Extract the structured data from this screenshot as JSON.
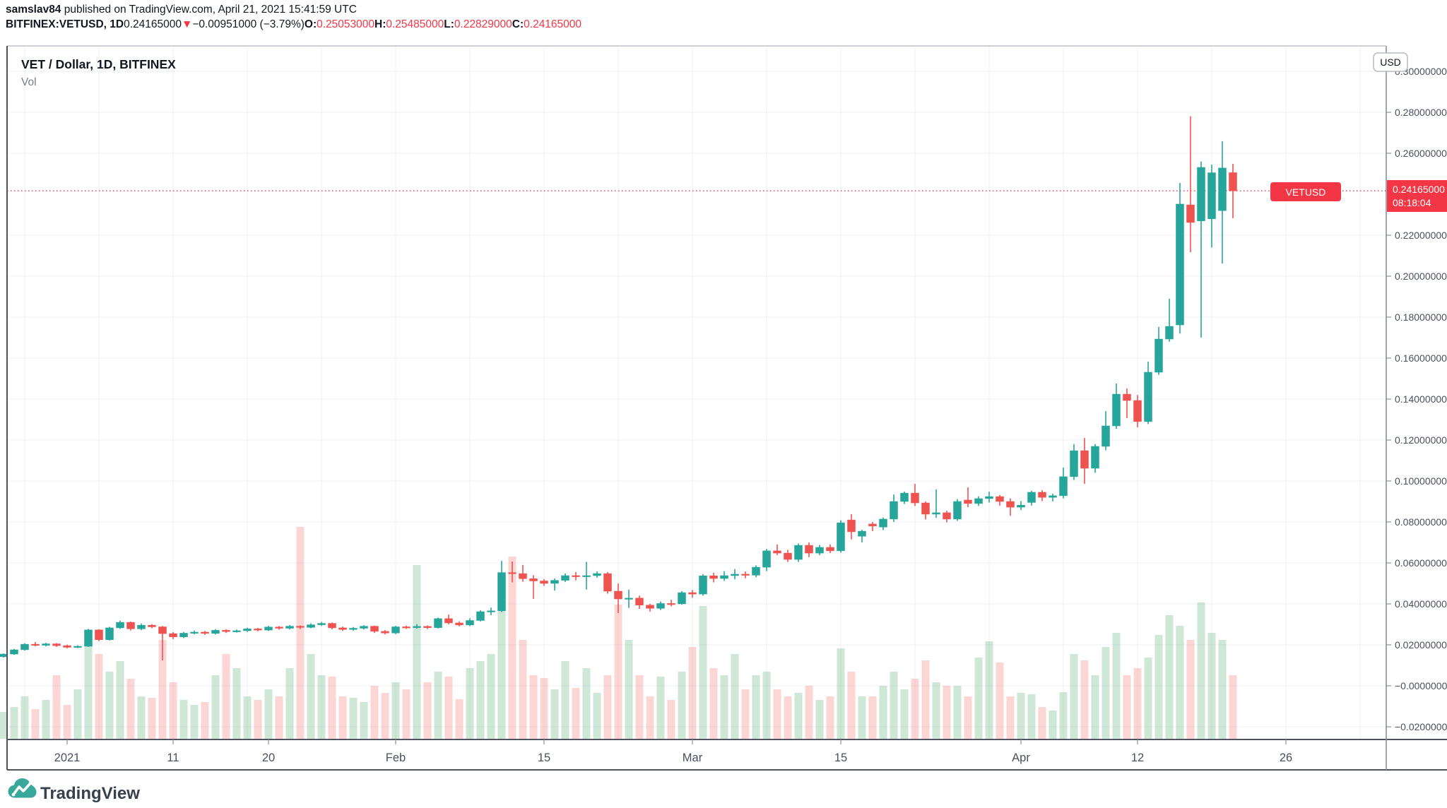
{
  "header": {
    "author": "samslav84",
    "published_text": " published on TradingView.com, April 21, 2021 15:41:59 UTC",
    "symbol_bold": "BITFINEX:VETUSD, 1D",
    "last_price": "0.24165000",
    "direction_icon": "▼",
    "change_text": "−0.00951000 (−3.79%)",
    "o_label": "O:",
    "o_value": "0.25053000",
    "h_label": "H:",
    "h_value": "0.25485000",
    "l_label": "L:",
    "l_value": "0.22829000",
    "c_label": "C:",
    "c_value": "0.24165000"
  },
  "pane": {
    "title": "VET / Dollar, 1D, BITFINEX",
    "indicator_label": "Vol"
  },
  "price_axis": {
    "unit_badge": "USD",
    "labels": [
      "0.30000000",
      "0.28000000",
      "0.26000000",
      "0.22000000",
      "0.20000000",
      "0.18000000",
      "0.16000000",
      "0.14000000",
      "0.12000000",
      "0.10000000",
      "0.08000000",
      "0.06000000",
      "0.04000000",
      "0.02000000",
      "−0.00000000",
      "−0.02000000"
    ],
    "current_price_text": "0.24165000",
    "countdown": "08:18:04"
  },
  "symbol_marker": {
    "label": "VETUSD"
  },
  "time_axis": {
    "labels": [
      {
        "text": "2021",
        "index": 6
      },
      {
        "text": "11",
        "index": 16
      },
      {
        "text": "20",
        "index": 25
      },
      {
        "text": "Feb",
        "index": 37
      },
      {
        "text": "15",
        "index": 51
      },
      {
        "text": "Mar",
        "index": 65
      },
      {
        "text": "15",
        "index": 79
      },
      {
        "text": "Apr",
        "index": 96
      },
      {
        "text": "12",
        "index": 107
      },
      {
        "text": "26",
        "index": 121
      }
    ]
  },
  "watermark": {
    "text": "TradingView"
  },
  "colors": {
    "up": "#26a69a",
    "down": "#ef5350",
    "vol_up": "rgba(82,170,108,0.28)",
    "vol_down": "rgba(239,83,80,0.24)",
    "accent_red": "#f23645",
    "grid": "#eceff3",
    "axis_text": "#4a505e",
    "title_text": "#131722",
    "muted_text": "#787b86",
    "border_dark": "#50535e",
    "border_light": "#b2b5be",
    "logo_teal": "#3aa79b",
    "logo_text": "#37404d"
  },
  "chart_data": {
    "type": "candlestick+volume",
    "symbol": "VETUSD",
    "exchange": "BITFINEX",
    "interval": "1D",
    "quote_currency": "USD",
    "start_date": "2020-12-26",
    "end_date": "2021-04-21",
    "current_price": 0.24165,
    "ylim": [
      -0.032,
      0.312
    ],
    "grid": true,
    "legend_position": "top-left",
    "columns": [
      "date",
      "open",
      "high",
      "low",
      "close",
      "volume_rel"
    ],
    "candles": [
      [
        "12-26",
        0.0142,
        0.0158,
        0.0138,
        0.0155,
        38
      ],
      [
        "12-27",
        0.0155,
        0.018,
        0.0151,
        0.0176,
        45
      ],
      [
        "12-28",
        0.0176,
        0.0208,
        0.0172,
        0.0203,
        60
      ],
      [
        "12-29",
        0.0203,
        0.0214,
        0.0193,
        0.0198,
        42
      ],
      [
        "12-30",
        0.0198,
        0.021,
        0.0192,
        0.0205,
        55
      ],
      [
        "12-31",
        0.0205,
        0.0209,
        0.019,
        0.0196,
        90
      ],
      [
        "01-01",
        0.0196,
        0.0201,
        0.0183,
        0.0188,
        48
      ],
      [
        "01-02",
        0.0188,
        0.0198,
        0.0184,
        0.0193,
        70
      ],
      [
        "01-03",
        0.0193,
        0.0278,
        0.019,
        0.0273,
        150
      ],
      [
        "01-04",
        0.0273,
        0.0276,
        0.0218,
        0.0225,
        120
      ],
      [
        "01-05",
        0.0225,
        0.0288,
        0.0221,
        0.0283,
        95
      ],
      [
        "01-06",
        0.0283,
        0.0318,
        0.0278,
        0.031,
        110
      ],
      [
        "01-07",
        0.031,
        0.0314,
        0.027,
        0.0278,
        85
      ],
      [
        "01-08",
        0.0278,
        0.0305,
        0.0272,
        0.0296,
        60
      ],
      [
        "01-09",
        0.0296,
        0.0301,
        0.0281,
        0.0288,
        58
      ],
      [
        "01-10",
        0.0288,
        0.0292,
        0.0124,
        0.0255,
        140
      ],
      [
        "01-11",
        0.0255,
        0.0262,
        0.0228,
        0.0239,
        80
      ],
      [
        "01-12",
        0.0239,
        0.0263,
        0.0233,
        0.0257,
        55
      ],
      [
        "01-13",
        0.0257,
        0.027,
        0.0251,
        0.0262,
        48
      ],
      [
        "01-14",
        0.0262,
        0.0268,
        0.0249,
        0.0256,
        52
      ],
      [
        "01-15",
        0.0256,
        0.0277,
        0.025,
        0.0271,
        90
      ],
      [
        "01-16",
        0.0271,
        0.0276,
        0.0258,
        0.0265,
        120
      ],
      [
        "01-17",
        0.0265,
        0.0275,
        0.026,
        0.0269,
        100
      ],
      [
        "01-18",
        0.0269,
        0.0284,
        0.0263,
        0.0278,
        60
      ],
      [
        "01-19",
        0.0278,
        0.0283,
        0.0266,
        0.0272,
        55
      ],
      [
        "01-20",
        0.0272,
        0.0293,
        0.0268,
        0.0287,
        70
      ],
      [
        "01-21",
        0.0287,
        0.0292,
        0.0274,
        0.0281,
        60
      ],
      [
        "01-22",
        0.0281,
        0.0297,
        0.0275,
        0.0291,
        100
      ],
      [
        "01-23",
        0.0291,
        0.0295,
        0.0277,
        0.0285,
        300
      ],
      [
        "01-24",
        0.0285,
        0.0305,
        0.0281,
        0.0298,
        120
      ],
      [
        "01-25",
        0.0298,
        0.0312,
        0.0292,
        0.0305,
        90
      ],
      [
        "01-26",
        0.0305,
        0.0309,
        0.0276,
        0.0283,
        88
      ],
      [
        "01-27",
        0.0283,
        0.0289,
        0.0268,
        0.0275,
        60
      ],
      [
        "01-28",
        0.0275,
        0.0287,
        0.0269,
        0.0281,
        58
      ],
      [
        "01-29",
        0.0281,
        0.0296,
        0.0275,
        0.0291,
        52
      ],
      [
        "01-30",
        0.0291,
        0.0294,
        0.0258,
        0.0266,
        75
      ],
      [
        "01-31",
        0.0266,
        0.0272,
        0.0251,
        0.0258,
        65
      ],
      [
        "02-01",
        0.0258,
        0.0293,
        0.0252,
        0.0288,
        80
      ],
      [
        "02-02",
        0.0288,
        0.0294,
        0.0278,
        0.0284,
        70
      ],
      [
        "02-03",
        0.0284,
        0.0301,
        0.0279,
        0.029,
        246
      ],
      [
        "02-04",
        0.029,
        0.0295,
        0.0277,
        0.0284,
        80
      ],
      [
        "02-05",
        0.0284,
        0.0333,
        0.028,
        0.0328,
        95
      ],
      [
        "02-06",
        0.0328,
        0.0348,
        0.03,
        0.0307,
        88
      ],
      [
        "02-07",
        0.0307,
        0.0315,
        0.029,
        0.0297,
        56
      ],
      [
        "02-08",
        0.0297,
        0.033,
        0.0291,
        0.0319,
        100
      ],
      [
        "02-09",
        0.0319,
        0.0369,
        0.0314,
        0.0362,
        110
      ],
      [
        "02-10",
        0.0362,
        0.0382,
        0.0345,
        0.0366,
        120
      ],
      [
        "02-11",
        0.0366,
        0.061,
        0.036,
        0.0553,
        190
      ],
      [
        "02-12",
        0.0553,
        0.0607,
        0.0505,
        0.0548,
        258
      ],
      [
        "02-13",
        0.0548,
        0.059,
        0.0508,
        0.0523,
        140
      ],
      [
        "02-14",
        0.0523,
        0.054,
        0.0424,
        0.0512,
        90
      ],
      [
        "02-15",
        0.0512,
        0.0521,
        0.0488,
        0.05,
        86
      ],
      [
        "02-16",
        0.05,
        0.0524,
        0.0465,
        0.0515,
        70
      ],
      [
        "02-17",
        0.0515,
        0.0549,
        0.0507,
        0.0538,
        110
      ],
      [
        "02-18",
        0.0538,
        0.0556,
        0.0515,
        0.0533,
        72
      ],
      [
        "02-19",
        0.0533,
        0.0605,
        0.047,
        0.0538,
        100
      ],
      [
        "02-20",
        0.0538,
        0.0559,
        0.0528,
        0.0548,
        65
      ],
      [
        "02-21",
        0.0548,
        0.0556,
        0.045,
        0.0462,
        90
      ],
      [
        "02-22",
        0.0462,
        0.05,
        0.0355,
        0.0424,
        190
      ],
      [
        "02-23",
        0.0424,
        0.047,
        0.038,
        0.0428,
        140
      ],
      [
        "02-24",
        0.0428,
        0.044,
        0.0376,
        0.0394,
        90
      ],
      [
        "02-25",
        0.0394,
        0.04,
        0.0362,
        0.0378,
        60
      ],
      [
        "02-26",
        0.0378,
        0.0412,
        0.037,
        0.0402,
        88
      ],
      [
        "02-27",
        0.0402,
        0.042,
        0.0388,
        0.04,
        55
      ],
      [
        "02-28",
        0.04,
        0.0462,
        0.0396,
        0.0455,
        95
      ],
      [
        "03-01",
        0.0455,
        0.0468,
        0.043,
        0.0448,
        130
      ],
      [
        "03-02",
        0.0448,
        0.0545,
        0.044,
        0.0537,
        188
      ],
      [
        "03-03",
        0.0537,
        0.0552,
        0.0505,
        0.0524,
        100
      ],
      [
        "03-04",
        0.0524,
        0.056,
        0.0512,
        0.0538,
        90
      ],
      [
        "03-05",
        0.0538,
        0.057,
        0.052,
        0.0545,
        120
      ],
      [
        "03-06",
        0.0545,
        0.0558,
        0.0525,
        0.054,
        70
      ],
      [
        "03-07",
        0.054,
        0.0588,
        0.053,
        0.0579,
        90
      ],
      [
        "03-08",
        0.0579,
        0.0668,
        0.056,
        0.0659,
        95
      ],
      [
        "03-09",
        0.0659,
        0.069,
        0.0638,
        0.0648,
        70
      ],
      [
        "03-10",
        0.0648,
        0.0664,
        0.0605,
        0.0617,
        60
      ],
      [
        "03-11",
        0.0617,
        0.0695,
        0.0605,
        0.0686,
        65
      ],
      [
        "03-12",
        0.0686,
        0.07,
        0.0628,
        0.0648,
        75
      ],
      [
        "03-13",
        0.0648,
        0.0688,
        0.0638,
        0.0676,
        55
      ],
      [
        "03-14",
        0.0676,
        0.069,
        0.0648,
        0.0659,
        60
      ],
      [
        "03-15",
        0.0659,
        0.0808,
        0.065,
        0.0796,
        128
      ],
      [
        "03-16",
        0.081,
        0.0838,
        0.0715,
        0.0752,
        95
      ],
      [
        "03-17",
        0.073,
        0.0762,
        0.07,
        0.0755,
        60
      ],
      [
        "03-18",
        0.079,
        0.08,
        0.0755,
        0.078,
        60
      ],
      [
        "03-19",
        0.0775,
        0.0822,
        0.076,
        0.0814,
        75
      ],
      [
        "03-20",
        0.0814,
        0.0934,
        0.08,
        0.09,
        95
      ],
      [
        "03-21",
        0.09,
        0.0948,
        0.0888,
        0.0941,
        70
      ],
      [
        "03-22",
        0.0941,
        0.0986,
        0.0878,
        0.0893,
        85
      ],
      [
        "03-23",
        0.0893,
        0.09,
        0.0812,
        0.0838,
        111
      ],
      [
        "03-24",
        0.0838,
        0.0959,
        0.082,
        0.0845,
        80
      ],
      [
        "03-25",
        0.0845,
        0.0855,
        0.0798,
        0.0814,
        75
      ],
      [
        "03-26",
        0.0814,
        0.0912,
        0.0805,
        0.09,
        75
      ],
      [
        "03-27",
        0.0907,
        0.0969,
        0.0872,
        0.089,
        60
      ],
      [
        "03-28",
        0.089,
        0.0925,
        0.0878,
        0.0914,
        115
      ],
      [
        "03-29",
        0.0914,
        0.0948,
        0.0895,
        0.0924,
        138
      ],
      [
        "03-30",
        0.0924,
        0.0932,
        0.088,
        0.09,
        108
      ],
      [
        "03-31",
        0.09,
        0.0915,
        0.083,
        0.0872,
        60
      ],
      [
        "04-01",
        0.0872,
        0.0902,
        0.0858,
        0.0882,
        65
      ],
      [
        "04-02",
        0.0895,
        0.0952,
        0.088,
        0.0945,
        63
      ],
      [
        "04-03",
        0.0945,
        0.0955,
        0.0902,
        0.092,
        45
      ],
      [
        "04-04",
        0.092,
        0.0938,
        0.09,
        0.0928,
        40
      ],
      [
        "04-05",
        0.0928,
        0.1066,
        0.0915,
        0.1021,
        66
      ],
      [
        "04-06",
        0.1021,
        0.118,
        0.1005,
        0.1148,
        120
      ],
      [
        "04-07",
        0.1148,
        0.121,
        0.0986,
        0.1062,
        111
      ],
      [
        "04-08",
        0.1062,
        0.118,
        0.104,
        0.1169,
        90
      ],
      [
        "04-09",
        0.1169,
        0.1341,
        0.115,
        0.1269,
        130
      ],
      [
        "04-10",
        0.1269,
        0.1476,
        0.1255,
        0.1424,
        150
      ],
      [
        "04-11",
        0.1424,
        0.1452,
        0.1307,
        0.1393,
        90
      ],
      [
        "04-12",
        0.1393,
        0.142,
        0.1262,
        0.129,
        100
      ],
      [
        "04-13",
        0.129,
        0.1583,
        0.1278,
        0.1531,
        115
      ],
      [
        "04-14",
        0.1531,
        0.1752,
        0.1518,
        0.1693,
        147
      ],
      [
        "04-15",
        0.1693,
        0.189,
        0.168,
        0.1755,
        175
      ],
      [
        "04-16",
        0.1762,
        0.2455,
        0.172,
        0.2352,
        160
      ],
      [
        "04-17",
        0.2348,
        0.278,
        0.2117,
        0.2262,
        140
      ],
      [
        "04-18",
        0.227,
        0.256,
        0.17,
        0.2531,
        193
      ],
      [
        "04-19",
        0.228,
        0.2545,
        0.214,
        0.2505,
        150
      ],
      [
        "04-20",
        0.232,
        0.2659,
        0.2062,
        0.2528,
        140
      ],
      [
        "04-21",
        0.25053,
        0.25485,
        0.22829,
        0.24165,
        90
      ]
    ]
  }
}
